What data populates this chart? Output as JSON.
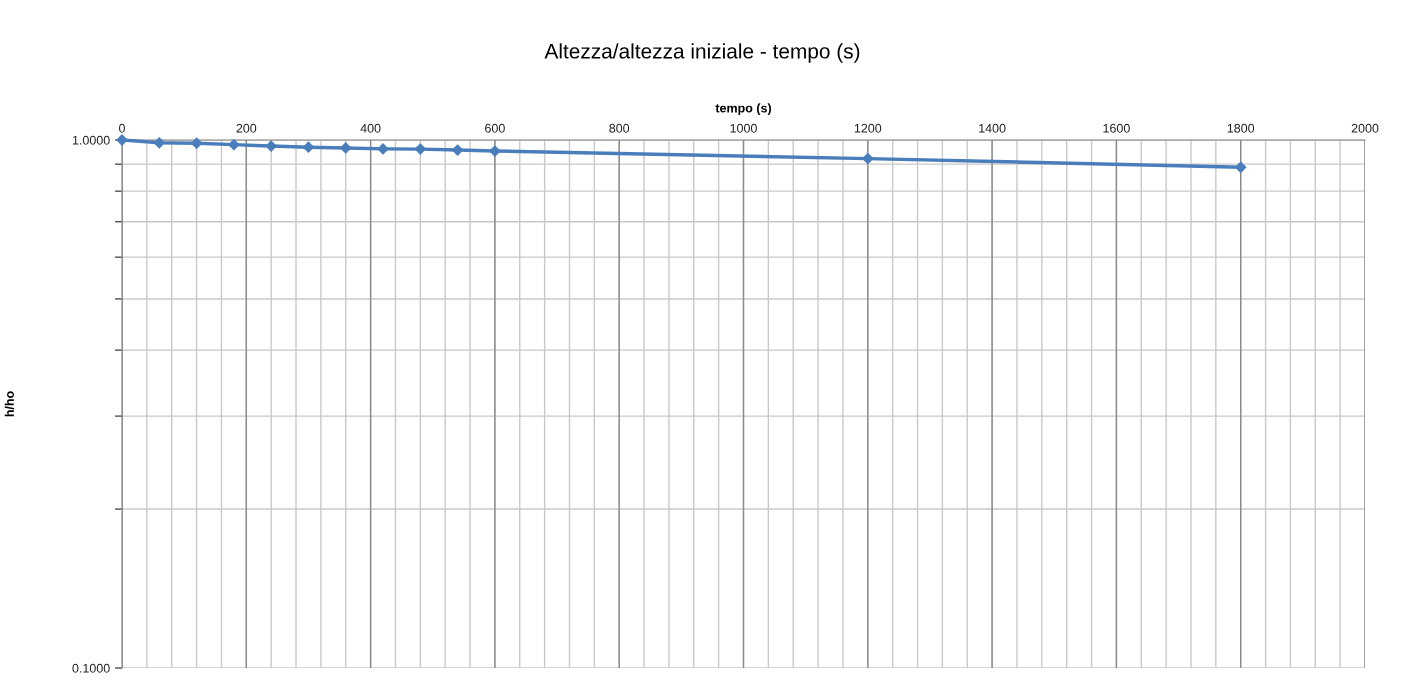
{
  "chart_data": {
    "type": "line",
    "title": "Altezza/altezza iniziale - tempo (s)",
    "xlabel": "tempo (s)",
    "ylabel": "h/ho",
    "x": [
      0,
      60,
      120,
      180,
      240,
      300,
      360,
      420,
      480,
      540,
      600,
      1200,
      1800
    ],
    "series": [
      {
        "color": "#4a7ebb",
        "values": [
          1.0,
          0.988,
          0.986,
          0.98,
          0.974,
          0.969,
          0.966,
          0.962,
          0.961,
          0.957,
          0.953,
          0.922,
          0.888
        ]
      }
    ],
    "log": "y",
    "xlim": [
      0,
      2000
    ],
    "ylim": [
      0.1,
      1.0
    ],
    "xticks": [
      0,
      {
        "value": 40,
        "label": null
      },
      {
        "value": 80,
        "label": null
      },
      {
        "value": 120,
        "label": null
      },
      {
        "value": 160,
        "label": null
      },
      200,
      {
        "value": 240,
        "label": null
      },
      {
        "value": 280,
        "label": null
      },
      {
        "value": 320,
        "label": null
      },
      {
        "value": 360,
        "label": null
      },
      400,
      {
        "value": 440,
        "label": null
      },
      {
        "value": 480,
        "label": null
      },
      {
        "value": 520,
        "label": null
      },
      {
        "value": 560,
        "label": null
      },
      600,
      {
        "value": 640,
        "label": null
      },
      {
        "value": 680,
        "label": null
      },
      {
        "value": 720,
        "label": null
      },
      {
        "value": 760,
        "label": null
      },
      800,
      {
        "value": 840,
        "label": null
      },
      {
        "value": 880,
        "label": null
      },
      {
        "value": 920,
        "label": null
      },
      {
        "value": 960,
        "label": null
      },
      1000,
      {
        "value": 1040,
        "label": null
      },
      {
        "value": 1080,
        "label": null
      },
      {
        "value": 1120,
        "label": null
      },
      {
        "value": 1160,
        "label": null
      },
      1200,
      {
        "value": 1240,
        "label": null
      },
      {
        "value": 1280,
        "label": null
      },
      {
        "value": 1320,
        "label": null
      },
      {
        "value": 1360,
        "label": null
      },
      1400,
      {
        "value": 1440,
        "label": null
      },
      {
        "value": 1480,
        "label": null
      },
      {
        "value": 1520,
        "label": null
      },
      {
        "value": 1560,
        "label": null
      },
      1600,
      {
        "value": 1640,
        "label": null
      },
      {
        "value": 1680,
        "label": null
      },
      {
        "value": 1720,
        "label": null
      },
      {
        "value": 1760,
        "label": null
      },
      1800,
      {
        "value": 1840,
        "label": null
      },
      {
        "value": 1880,
        "label": null
      },
      {
        "value": 1920,
        "label": null
      },
      {
        "value": 1960,
        "label": null
      },
      2000
    ],
    "yticks": [
      {
        "value": 0.1,
        "label": "0.1000"
      },
      {
        "value": 0.2,
        "label": null
      },
      {
        "value": 0.3,
        "label": null
      },
      {
        "value": 0.4,
        "label": null
      },
      {
        "value": 0.5,
        "label": null
      },
      {
        "value": 0.6,
        "label": null
      },
      {
        "value": 0.7,
        "label": null
      },
      {
        "value": 0.8,
        "label": null
      },
      {
        "value": 0.9,
        "label": null
      },
      {
        "value": 1.0,
        "label": "1.0000"
      }
    ],
    "grid": true,
    "marker": "diamond",
    "line_style": "solid"
  }
}
